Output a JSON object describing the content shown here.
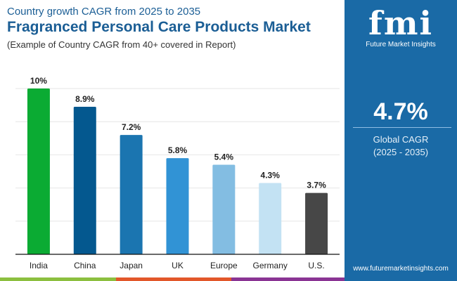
{
  "header": {
    "subtitle": "Country growth CAGR from 2025 to 2035",
    "title": "Fragranced Personal Care Products Market",
    "note": "(Example of Country CAGR from 40+ covered in Report)"
  },
  "panel": {
    "logo_text": "fmi",
    "brand": "Future Market Insights",
    "cagr_value": "4.7%",
    "cagr_label": "Global CAGR",
    "cagr_period": "(2025 - 2035)",
    "url": "www.futuremarketinsights.com",
    "bg_color": "#1a6aa6"
  },
  "chart_data": {
    "type": "bar",
    "categories": [
      "India",
      "China",
      "Japan",
      "UK",
      "Europe",
      "Germany",
      "U.S."
    ],
    "values": [
      10,
      8.9,
      7.2,
      5.8,
      5.4,
      4.3,
      3.7
    ],
    "labels": [
      "10%",
      "8.9%",
      "7.2%",
      "5.8%",
      "5.4%",
      "4.3%",
      "3.7%"
    ],
    "colors": [
      "#0bab33",
      "#04588f",
      "#1b75b0",
      "#3193d5",
      "#83bde2",
      "#c3e2f3",
      "#474747"
    ],
    "ylim": [
      0,
      10
    ],
    "grid": true
  }
}
